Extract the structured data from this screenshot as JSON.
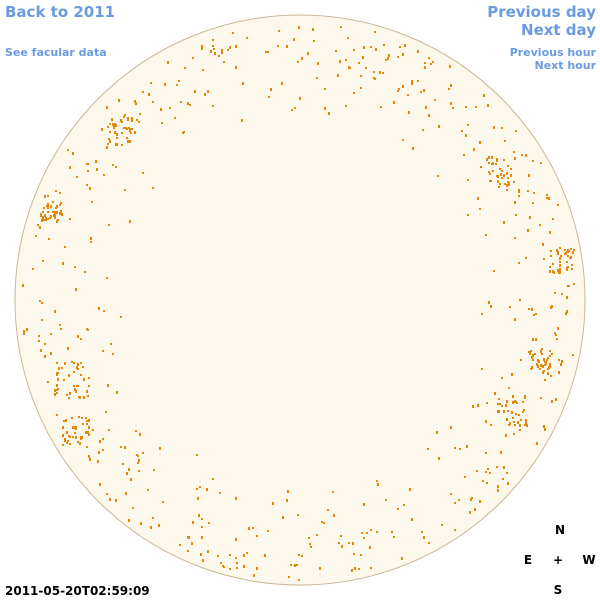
{
  "navigation": {
    "back": "Back to 2011",
    "facular": "See facular data",
    "previous_day": "Previous day",
    "next_day": "Next day",
    "previous_hour": "Previous hour",
    "next_hour": "Next hour"
  },
  "compass": {
    "north": "N",
    "east": "E",
    "center": "+",
    "west": "W",
    "south": "S"
  },
  "timestamp": "2011-05-20T02:59:09"
}
